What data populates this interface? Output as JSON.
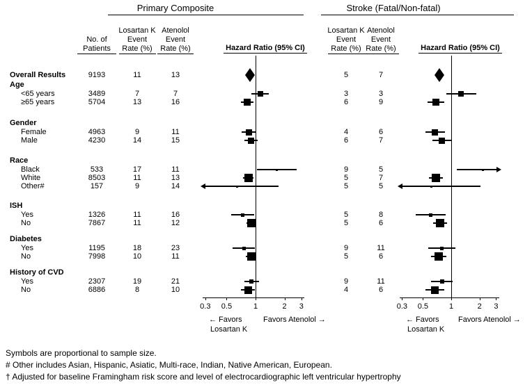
{
  "panels": [
    {
      "title": "Primary Composite",
      "columns": {
        "losartan": "Losartan K\nEvent\nRate (%)",
        "atenolol": "Atenolol\nEvent\nRate (%)",
        "hazard": "Hazard Ratio (95% CI)"
      }
    },
    {
      "title": "Stroke (Fatal/Non-fatal)",
      "columns": {
        "losartan": "Losartan K\nEvent\nRate (%)",
        "atenolol": "Atenolol\nEvent\nRate (%)",
        "hazard": "Hazard Ratio (95% CI)"
      }
    }
  ],
  "patients_header": "No. of\nPatients",
  "axis": {
    "ticks": [
      "0.3",
      "0.5",
      "1",
      "2",
      "3"
    ]
  },
  "favors": {
    "left_arrow": "← Favors",
    "left_name": "Losartan K",
    "right": "Favors Atenolol →"
  },
  "footnotes": [
    "Symbols are proportional to sample size.",
    "# Other includes Asian, Hispanic, Asiatic, Multi-race, Indian, Native American, European.",
    "† Adjusted for baseline Framingham risk score and level of electrocardiographic left ventricular hypertrophy"
  ],
  "chart_data": {
    "type": "scatter",
    "subtype": "forest-plot",
    "x_scale": "log",
    "x_ticks": [
      0.3,
      0.5,
      1,
      2,
      3
    ],
    "x_range": [
      0.3,
      3
    ],
    "reference_line": 1,
    "xlabel": "Hazard Ratio (95% CI)",
    "panel_names": [
      "Primary Composite",
      "Stroke (Fatal/Non-fatal)"
    ],
    "symbols_note": "Symbols are proportional to sample size.",
    "rows": [
      {
        "label": "Overall Results",
        "type": "data",
        "bold": true,
        "indent": false,
        "patients": 9193,
        "primary": {
          "losartan_rate": 11,
          "atenolol_rate": 13,
          "hr": 0.87,
          "ci": [
            0.78,
            0.97
          ],
          "shape": "diamond"
        },
        "stroke": {
          "losartan_rate": 5,
          "atenolol_rate": 7,
          "hr": 0.75,
          "ci": [
            0.64,
            0.88
          ],
          "shape": "diamond"
        }
      },
      {
        "label": "Age",
        "type": "header"
      },
      {
        "label": "<65 years",
        "type": "data",
        "indent": true,
        "patients": 3489,
        "primary": {
          "losartan_rate": 7,
          "atenolol_rate": 7,
          "hr": 1.12,
          "ci": [
            0.91,
            1.38
          ],
          "shape": "square"
        },
        "stroke": {
          "losartan_rate": 3,
          "atenolol_rate": 3,
          "hr": 1.28,
          "ci": [
            0.88,
            1.86
          ],
          "shape": "square"
        }
      },
      {
        "label": "≥65 years",
        "type": "data",
        "indent": true,
        "patients": 5704,
        "primary": {
          "losartan_rate": 13,
          "atenolol_rate": 16,
          "hr": 0.82,
          "ci": [
            0.71,
            0.95
          ],
          "shape": "square"
        },
        "stroke": {
          "losartan_rate": 6,
          "atenolol_rate": 9,
          "hr": 0.69,
          "ci": [
            0.56,
            0.84
          ],
          "shape": "square"
        }
      },
      {
        "label": "Gender",
        "type": "header"
      },
      {
        "label": "Female",
        "type": "data",
        "indent": true,
        "patients": 4963,
        "primary": {
          "losartan_rate": 9,
          "atenolol_rate": 11,
          "hr": 0.86,
          "ci": [
            0.72,
            1.02
          ],
          "shape": "square"
        },
        "stroke": {
          "losartan_rate": 4,
          "atenolol_rate": 6,
          "hr": 0.67,
          "ci": [
            0.53,
            0.86
          ],
          "shape": "square"
        }
      },
      {
        "label": "Male",
        "type": "data",
        "indent": true,
        "patients": 4230,
        "primary": {
          "losartan_rate": 14,
          "atenolol_rate": 15,
          "hr": 0.9,
          "ci": [
            0.77,
            1.06
          ],
          "shape": "square"
        },
        "stroke": {
          "losartan_rate": 6,
          "atenolol_rate": 7,
          "hr": 0.8,
          "ci": [
            0.63,
            1.01
          ],
          "shape": "square"
        }
      },
      {
        "label": "Race",
        "type": "header"
      },
      {
        "label": "Black",
        "type": "data",
        "indent": true,
        "patients": 533,
        "primary": {
          "losartan_rate": 17,
          "atenolol_rate": 11,
          "hr": 1.67,
          "ci": [
            1.04,
            2.66
          ],
          "shape": "square"
        },
        "stroke": {
          "losartan_rate": 9,
          "atenolol_rate": 5,
          "hr": 2.18,
          "ci": [
            1.14,
            4.2
          ],
          "shape": "square",
          "clip": "right"
        }
      },
      {
        "label": "White",
        "type": "data",
        "indent": true,
        "patients": 8503,
        "primary": {
          "losartan_rate": 11,
          "atenolol_rate": 13,
          "hr": 0.84,
          "ci": [
            0.74,
            0.95
          ],
          "shape": "square"
        },
        "stroke": {
          "losartan_rate": 5,
          "atenolol_rate": 7,
          "hr": 0.69,
          "ci": [
            0.58,
            0.82
          ],
          "shape": "square"
        }
      },
      {
        "label": "Other#",
        "type": "data",
        "indent": true,
        "patients": 157,
        "primary": {
          "losartan_rate": 9,
          "atenolol_rate": 14,
          "hr": 0.64,
          "ci": [
            0.22,
            1.73
          ],
          "shape": "square",
          "clip": "left"
        },
        "stroke": {
          "losartan_rate": 5,
          "atenolol_rate": 5,
          "hr": 0.62,
          "ci": [
            0.2,
            2.05
          ],
          "shape": "square",
          "clip": "left"
        }
      },
      {
        "label": "ISH",
        "type": "header"
      },
      {
        "label": "Yes",
        "type": "data",
        "indent": true,
        "patients": 1326,
        "primary": {
          "losartan_rate": 11,
          "atenolol_rate": 16,
          "hr": 0.73,
          "ci": [
            0.56,
            0.96
          ],
          "shape": "square"
        },
        "stroke": {
          "losartan_rate": 5,
          "atenolol_rate": 8,
          "hr": 0.6,
          "ci": [
            0.42,
            0.87
          ],
          "shape": "square"
        }
      },
      {
        "label": "No",
        "type": "data",
        "indent": true,
        "patients": 7867,
        "primary": {
          "losartan_rate": 11,
          "atenolol_rate": 12,
          "hr": 0.9,
          "ci": [
            0.8,
            1.02
          ],
          "shape": "square"
        },
        "stroke": {
          "losartan_rate": 5,
          "atenolol_rate": 6,
          "hr": 0.76,
          "ci": [
            0.64,
            0.91
          ],
          "shape": "square"
        }
      },
      {
        "label": "Diabetes",
        "type": "header"
      },
      {
        "label": "Yes",
        "type": "data",
        "indent": true,
        "patients": 1195,
        "primary": {
          "losartan_rate": 18,
          "atenolol_rate": 23,
          "hr": 0.76,
          "ci": [
            0.58,
            0.98
          ],
          "shape": "square"
        },
        "stroke": {
          "losartan_rate": 9,
          "atenolol_rate": 11,
          "hr": 0.79,
          "ci": [
            0.57,
            1.11
          ],
          "shape": "square"
        }
      },
      {
        "label": "No",
        "type": "data",
        "indent": true,
        "patients": 7998,
        "primary": {
          "losartan_rate": 10,
          "atenolol_rate": 11,
          "hr": 0.9,
          "ci": [
            0.79,
            1.02
          ],
          "shape": "square"
        },
        "stroke": {
          "losartan_rate": 5,
          "atenolol_rate": 6,
          "hr": 0.74,
          "ci": [
            0.61,
            0.89
          ],
          "shape": "square"
        }
      },
      {
        "label": "History of CVD",
        "type": "header"
      },
      {
        "label": "Yes",
        "type": "data",
        "indent": true,
        "patients": 2307,
        "primary": {
          "losartan_rate": 19,
          "atenolol_rate": 21,
          "hr": 0.91,
          "ci": [
            0.76,
            1.09
          ],
          "shape": "square"
        },
        "stroke": {
          "losartan_rate": 9,
          "atenolol_rate": 11,
          "hr": 0.8,
          "ci": [
            0.61,
            1.04
          ],
          "shape": "square"
        }
      },
      {
        "label": "No",
        "type": "data",
        "indent": true,
        "patients": 6886,
        "primary": {
          "losartan_rate": 8,
          "atenolol_rate": 10,
          "hr": 0.84,
          "ci": [
            0.71,
            0.98
          ],
          "shape": "square"
        },
        "stroke": {
          "losartan_rate": 4,
          "atenolol_rate": 6,
          "hr": 0.67,
          "ci": [
            0.53,
            0.84
          ],
          "shape": "square"
        }
      }
    ]
  }
}
